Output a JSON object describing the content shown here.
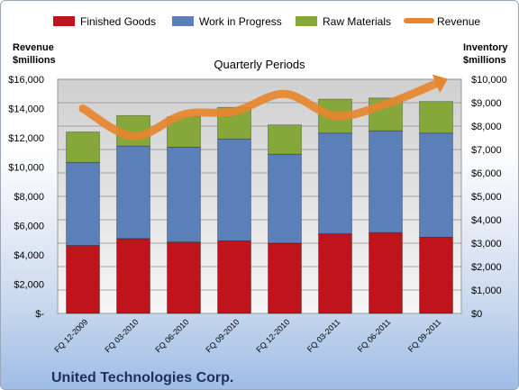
{
  "chart_data": {
    "type": "bar",
    "title": "Quarterly Periods",
    "company": "United Technologies Corp.",
    "left_axis_label": [
      "Revenue",
      "$millions"
    ],
    "right_axis_label": [
      "Inventory",
      "$millions"
    ],
    "left_ticks": [
      "$-",
      "$2,000",
      "$4,000",
      "$6,000",
      "$8,000",
      "$10,000",
      "$12,000",
      "$14,000",
      "$16,000"
    ],
    "right_ticks": [
      "$0",
      "$1,000",
      "$2,000",
      "$3,000",
      "$4,000",
      "$5,000",
      "$6,000",
      "$7,000",
      "$8,000",
      "$9,000",
      "$10,000"
    ],
    "left_ylim": [
      0,
      16000
    ],
    "right_ylim": [
      0,
      10000
    ],
    "categories": [
      "FQ 12-2009",
      "FQ 03-2010",
      "FQ 06-2010",
      "FQ 09-2010",
      "FQ 12-2010",
      "FQ 03-2011",
      "FQ 06-2011",
      "FQ 09-2011"
    ],
    "stacked": true,
    "legend_position": "top",
    "grid": true,
    "series": [
      {
        "name": "Finished Goods",
        "axis": "right",
        "color": "#c0141c",
        "values": [
          2900,
          3200,
          3050,
          3100,
          3000,
          3400,
          3450,
          3250
        ]
      },
      {
        "name": "Work in Progress",
        "axis": "right",
        "color": "#5b7fb9",
        "values": [
          3550,
          3950,
          4050,
          4350,
          3800,
          4300,
          4350,
          4450
        ]
      },
      {
        "name": "Raw Materials",
        "axis": "right",
        "color": "#86a83a",
        "values": [
          1300,
          1300,
          1300,
          1350,
          1250,
          1450,
          1400,
          1350
        ]
      },
      {
        "name": "Revenue",
        "axis": "left",
        "type": "line",
        "color": "#e6872f",
        "values": [
          14000,
          12100,
          13600,
          13800,
          15000,
          13500,
          14300,
          15700
        ]
      }
    ]
  }
}
